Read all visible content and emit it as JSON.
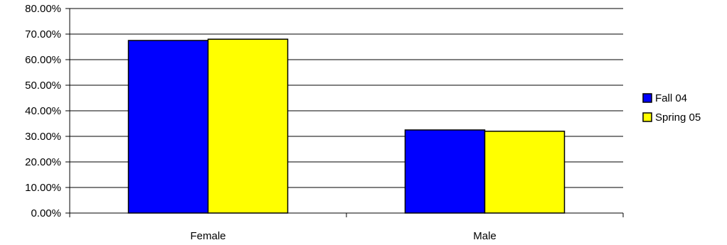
{
  "chart_data": {
    "type": "bar",
    "categories": [
      "Female",
      "Male"
    ],
    "series": [
      {
        "name": "Fall 04",
        "values": [
          67.5,
          32.5
        ],
        "color": "#0000FF"
      },
      {
        "name": "Spring 05",
        "values": [
          68.0,
          32.0
        ],
        "color": "#FFFF00"
      }
    ],
    "ylim": [
      0,
      80
    ],
    "yticks": [
      0,
      10,
      20,
      30,
      40,
      50,
      60,
      70,
      80
    ],
    "ytick_labels": [
      "0.00%",
      "10.00%",
      "20.00%",
      "30.00%",
      "40.00%",
      "50.00%",
      "60.00%",
      "70.00%",
      "80.00%"
    ],
    "grid": true,
    "legend_position": "right"
  }
}
